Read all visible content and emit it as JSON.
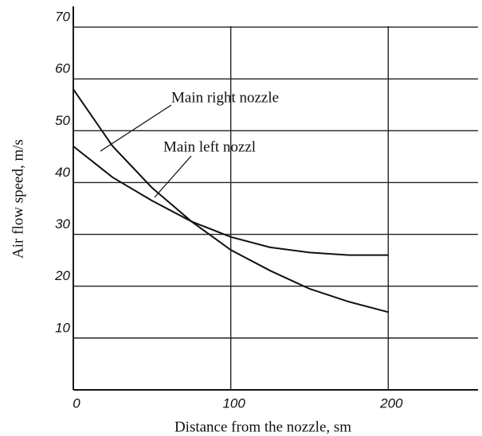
{
  "chart_data": {
    "type": "line",
    "x_label": "Distance from the nozzle, sm",
    "y_label": "Air flow speed,  m/s",
    "x": [
      0,
      25,
      50,
      75,
      100,
      125,
      150,
      175,
      200
    ],
    "series": [
      {
        "name": "Main right nozzle",
        "color": "#111111",
        "values": [
          58,
          47,
          39,
          32.5,
          27,
          23,
          19.5,
          17,
          15
        ]
      },
      {
        "name": "Main left nozzl",
        "color": "#111111",
        "values": [
          47,
          41,
          36.5,
          32.5,
          29.5,
          27.5,
          26.5,
          26,
          26
        ]
      }
    ],
    "xlim": [
      0,
      257
    ],
    "ylim": [
      0,
      74
    ],
    "xticks": [
      0,
      100,
      200
    ],
    "yticks": [
      10,
      20,
      30,
      40,
      50,
      60,
      70
    ],
    "grid": true
  }
}
